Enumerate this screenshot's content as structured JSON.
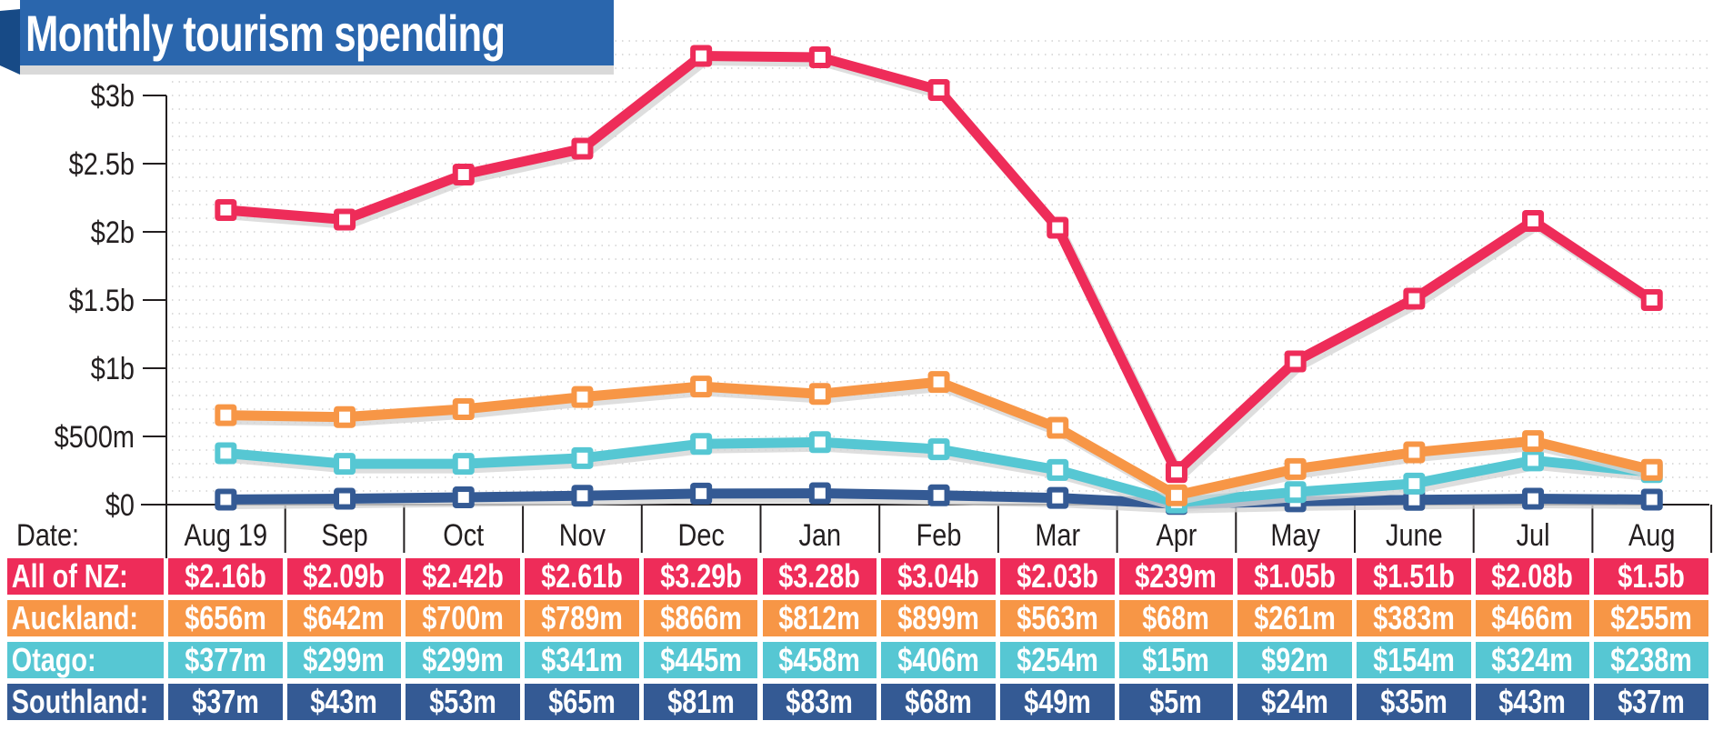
{
  "title": "Monthly tourism spending",
  "colors": {
    "banner": "#2a66ad",
    "banner_dark": "#174a86",
    "all_nz": "#ee2c59",
    "auckland": "#f79646",
    "otago": "#56c7d3",
    "southland": "#345a94",
    "axis": "#231f20",
    "grid": "#c8c8c8"
  },
  "table": {
    "date_label": "Date:",
    "rows": [
      {
        "label": "All of NZ:",
        "color_key": "all_nz",
        "values": [
          "$2.16b",
          "$2.09b",
          "$2.42b",
          "$2.61b",
          "$3.29b",
          "$3.28b",
          "$3.04b",
          "$2.03b",
          "$239m",
          "$1.05b",
          "$1.51b",
          "$2.08b",
          "$1.5b"
        ]
      },
      {
        "label": "Auckland:",
        "color_key": "auckland",
        "values": [
          "$656m",
          "$642m",
          "$700m",
          "$789m",
          "$866m",
          "$812m",
          "$899m",
          "$563m",
          "$68m",
          "$261m",
          "$383m",
          "$466m",
          "$255m"
        ]
      },
      {
        "label": "Otago:",
        "color_key": "otago",
        "values": [
          "$377m",
          "$299m",
          "$299m",
          "$341m",
          "$445m",
          "$458m",
          "$406m",
          "$254m",
          "$15m",
          "$92m",
          "$154m",
          "$324m",
          "$238m"
        ]
      },
      {
        "label": "Southland:",
        "color_key": "southland",
        "values": [
          "$37m",
          "$43m",
          "$53m",
          "$65m",
          "$81m",
          "$83m",
          "$68m",
          "$49m",
          "$5m",
          "$24m",
          "$35m",
          "$43m",
          "$37m"
        ]
      }
    ]
  },
  "chart_data": {
    "type": "line",
    "title": "Monthly tourism spending",
    "xlabel": "Date:",
    "ylabel": "",
    "categories": [
      "Aug 19",
      "Sep",
      "Oct",
      "Nov",
      "Dec",
      "Jan",
      "Feb",
      "Mar",
      "Apr",
      "May",
      "June",
      "Jul",
      "Aug"
    ],
    "ylim": [
      0,
      3000
    ],
    "y_unit": "NZ$ millions",
    "yticks": [
      {
        "value": 0,
        "label": "$0"
      },
      {
        "value": 500,
        "label": "$500m"
      },
      {
        "value": 1000,
        "label": "$1b"
      },
      {
        "value": 1500,
        "label": "$1.5b"
      },
      {
        "value": 2000,
        "label": "$2b"
      },
      {
        "value": 2500,
        "label": "$2.5b"
      },
      {
        "value": 3000,
        "label": "$3b"
      }
    ],
    "grid": true,
    "legend": "table-below",
    "series": [
      {
        "name": "All of NZ",
        "color_key": "all_nz",
        "values": [
          2160,
          2090,
          2420,
          2610,
          3290,
          3280,
          3040,
          2030,
          239,
          1050,
          1510,
          2080,
          1500
        ]
      },
      {
        "name": "Auckland",
        "color_key": "auckland",
        "values": [
          656,
          642,
          700,
          789,
          866,
          812,
          899,
          563,
          68,
          261,
          383,
          466,
          255
        ]
      },
      {
        "name": "Otago",
        "color_key": "otago",
        "values": [
          377,
          299,
          299,
          341,
          445,
          458,
          406,
          254,
          15,
          92,
          154,
          324,
          238
        ]
      },
      {
        "name": "Southland",
        "color_key": "southland",
        "values": [
          37,
          43,
          53,
          65,
          81,
          83,
          68,
          49,
          5,
          24,
          35,
          43,
          37
        ]
      }
    ]
  }
}
